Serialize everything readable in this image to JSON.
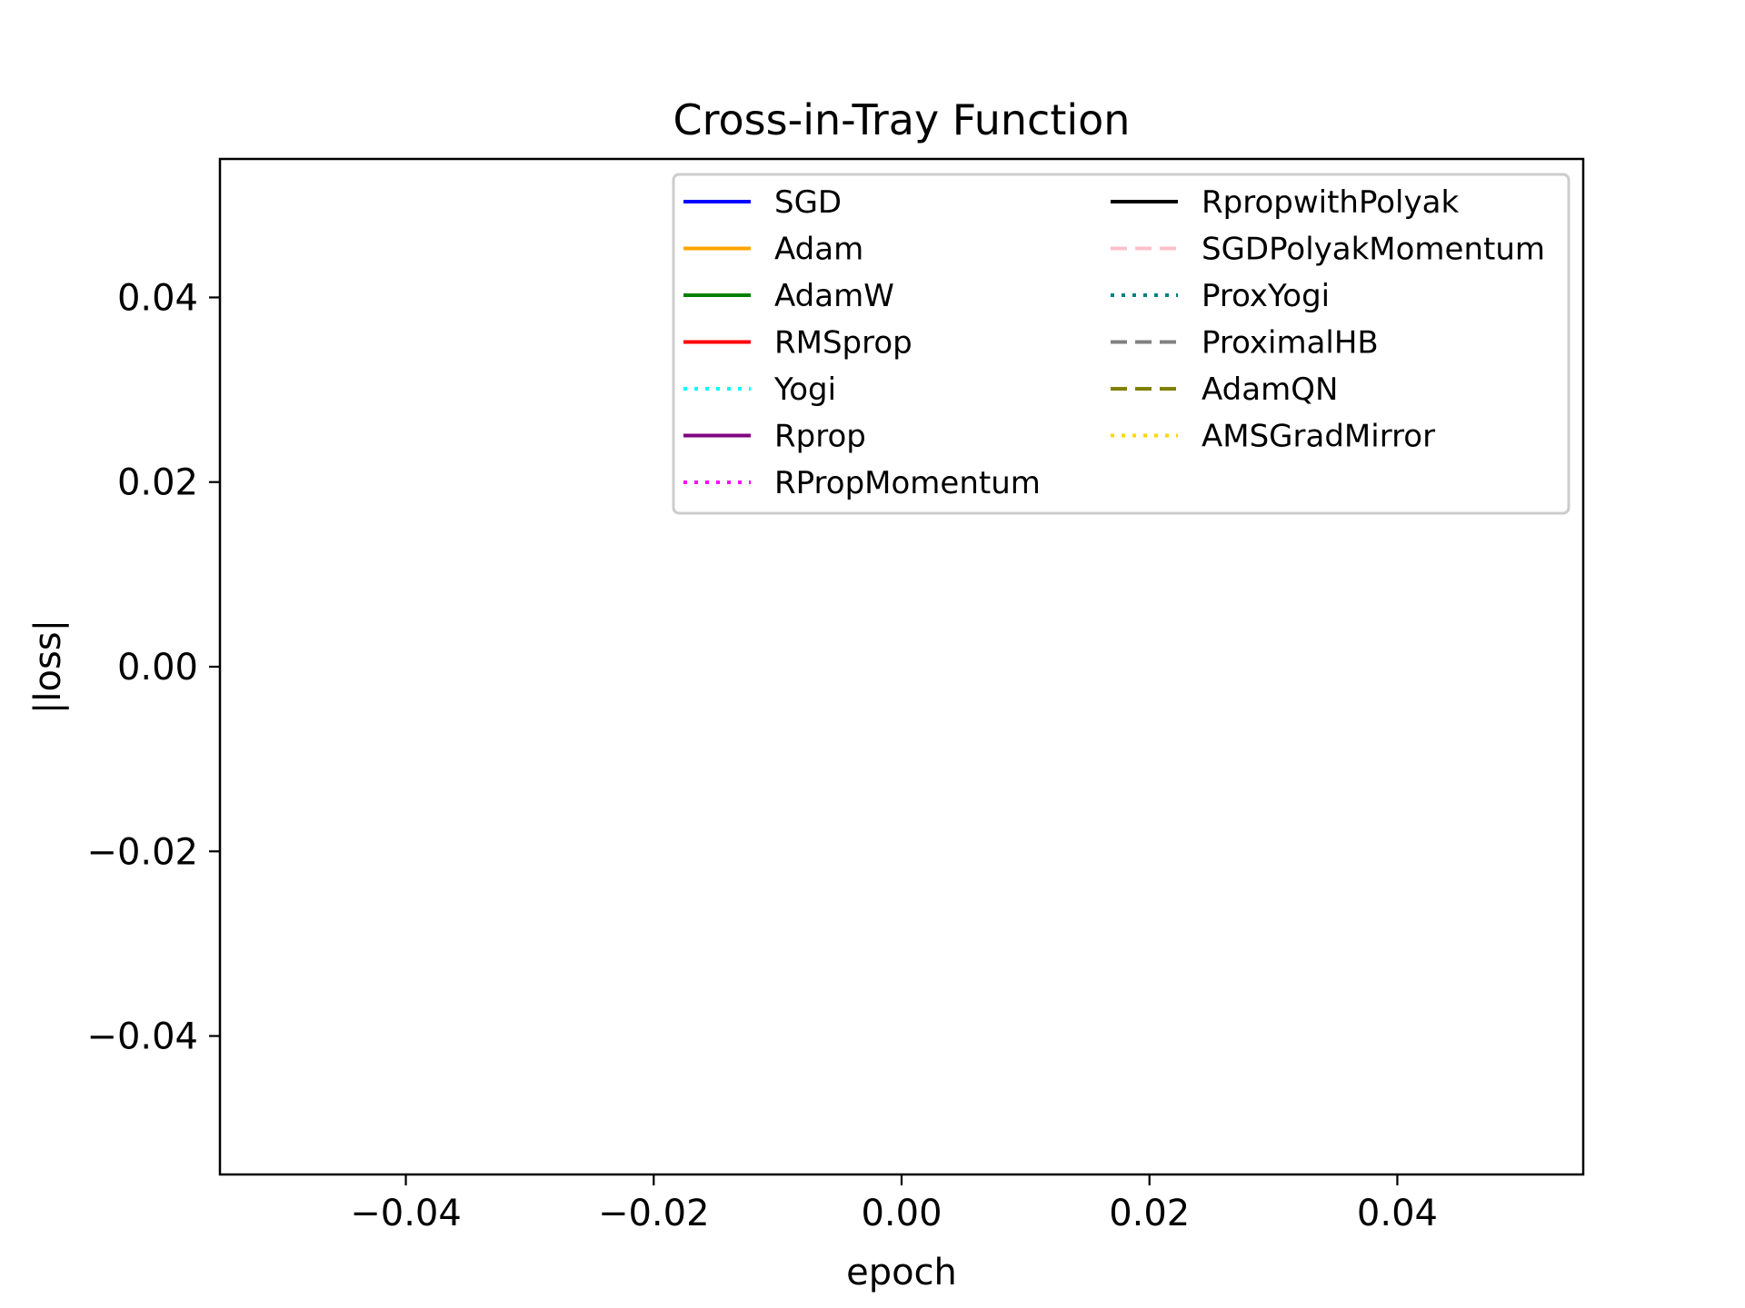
{
  "chart_data": {
    "type": "line",
    "title": "Cross-in-Tray Function",
    "xlabel": "epoch",
    "ylabel": "|loss|",
    "xlim": [
      -0.055,
      0.055
    ],
    "ylim": [
      -0.055,
      0.055
    ],
    "xticks": [
      -0.04,
      -0.02,
      0.0,
      0.02,
      0.04
    ],
    "xtick_labels": [
      "−0.04",
      "−0.02",
      "0.00",
      "0.02",
      "0.04"
    ],
    "yticks": [
      0.04,
      0.02,
      0.0,
      -0.02,
      -0.04
    ],
    "ytick_labels": [
      "0.04",
      "0.02",
      "0.00",
      "−0.02",
      "−0.04"
    ],
    "grid": false,
    "legend_position": "upper right",
    "legend_columns": 2,
    "series": [
      {
        "name": "SGD",
        "color": "#0000ff",
        "style": "solid",
        "x": [],
        "y": []
      },
      {
        "name": "Adam",
        "color": "#ffa500",
        "style": "solid",
        "x": [],
        "y": []
      },
      {
        "name": "AdamW",
        "color": "#008000",
        "style": "solid",
        "x": [],
        "y": []
      },
      {
        "name": "RMSprop",
        "color": "#ff0000",
        "style": "solid",
        "x": [],
        "y": []
      },
      {
        "name": "Yogi",
        "color": "#00ffff",
        "style": "dotted",
        "x": [],
        "y": []
      },
      {
        "name": "Rprop",
        "color": "#800080",
        "style": "solid",
        "x": [],
        "y": []
      },
      {
        "name": "RPropMomentum",
        "color": "#ff00ff",
        "style": "dotted",
        "x": [],
        "y": []
      },
      {
        "name": "RpropwithPolyak",
        "color": "#000000",
        "style": "solid",
        "x": [],
        "y": []
      },
      {
        "name": "SGDPolyakMomentum",
        "color": "#ffc0cb",
        "style": "dashed",
        "x": [],
        "y": []
      },
      {
        "name": "ProxYogi",
        "color": "#008080",
        "style": "dotted",
        "x": [],
        "y": []
      },
      {
        "name": "ProximalHB",
        "color": "#808080",
        "style": "dashed",
        "x": [],
        "y": []
      },
      {
        "name": "AdamQN",
        "color": "#808000",
        "style": "dashed",
        "x": [],
        "y": []
      },
      {
        "name": "AMSGradMirror",
        "color": "#ffd700",
        "style": "dotted",
        "x": [],
        "y": []
      }
    ]
  }
}
